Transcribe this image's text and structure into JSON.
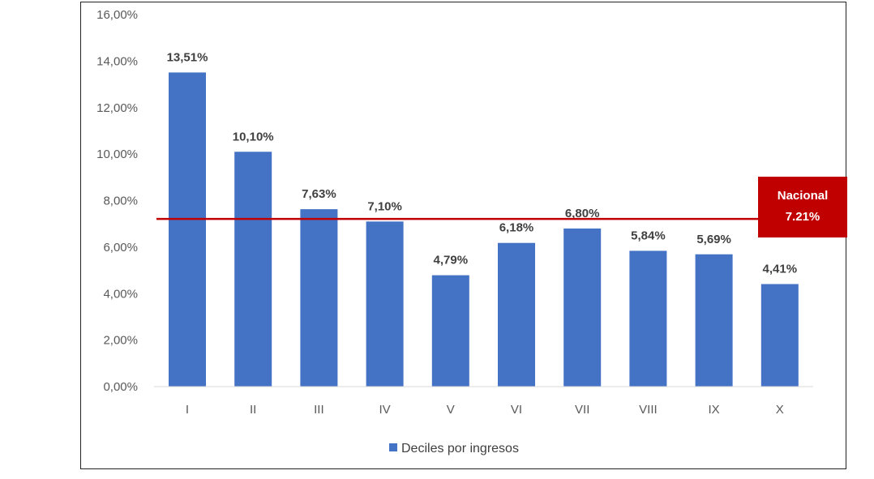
{
  "chart_data": {
    "type": "bar",
    "title": "",
    "xlabel": "",
    "ylabel": "",
    "categories": [
      "I",
      "II",
      "III",
      "IV",
      "V",
      "VI",
      "VII",
      "VIII",
      "IX",
      "X"
    ],
    "values": [
      13.51,
      10.1,
      7.63,
      7.1,
      4.79,
      6.18,
      6.8,
      5.84,
      5.69,
      4.41
    ],
    "value_labels": [
      "13,51%",
      "10,10%",
      "7,63%",
      "7,10%",
      "4,79%",
      "6,18%",
      "6,80%",
      "5,84%",
      "5,69%",
      "4,41%"
    ],
    "ylim": [
      0,
      16
    ],
    "yticks": [
      "0,00%",
      "2,00%",
      "4,00%",
      "6,00%",
      "8,00%",
      "10,00%",
      "12,00%",
      "14,00%",
      "16,00%"
    ],
    "grid": false,
    "legend": {
      "position": "bottom",
      "entries": [
        "Deciles por ingresos"
      ]
    },
    "reference_line": {
      "value": 7.21,
      "label_line1": "Nacional",
      "label_line2": "7.21%"
    },
    "colors": {
      "bar": "#4472C4",
      "reference": "#C00000"
    }
  }
}
